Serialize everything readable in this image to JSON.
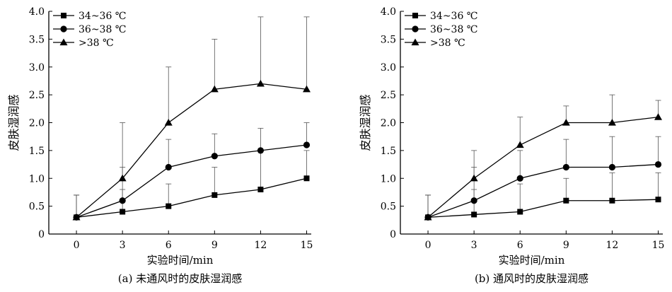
{
  "chart_data": [
    {
      "type": "line",
      "caption": "(a) 未通风时的皮肤湿润感",
      "xlabel": "实验时间/min",
      "ylabel": "皮肤湿润感",
      "x": [
        0,
        3,
        6,
        9,
        12,
        15
      ],
      "xlim": [
        -1.8,
        15.3
      ],
      "ylim": [
        0,
        4.0
      ],
      "yticks": [
        "0",
        "0.5",
        "1.0",
        "1.5",
        "2.0",
        "2.5",
        "3.0",
        "3.5",
        "4.0"
      ],
      "legend_position": "top-left",
      "series": [
        {
          "name": "34~36 ℃",
          "marker": "square",
          "values": [
            0.3,
            0.4,
            0.5,
            0.7,
            0.8,
            1.0
          ],
          "error_upper": [
            0.7,
            0.8,
            0.9,
            1.2,
            1.5,
            1.5
          ]
        },
        {
          "name": "36~38 ℃",
          "marker": "circle",
          "values": [
            0.3,
            0.6,
            1.2,
            1.4,
            1.5,
            1.6
          ],
          "error_upper": [
            0.7,
            1.2,
            1.7,
            1.8,
            1.9,
            2.0
          ]
        },
        {
          "name": ">38 ℃",
          "marker": "triangle",
          "values": [
            0.3,
            1.0,
            2.0,
            2.6,
            2.7,
            2.6
          ],
          "error_upper": [
            0.7,
            2.0,
            3.0,
            3.5,
            3.9,
            3.9
          ]
        }
      ]
    },
    {
      "type": "line",
      "caption": "(b) 通风时的皮肤湿润感",
      "xlabel": "实验时间/min",
      "ylabel": "皮肤湿润感",
      "x": [
        0,
        3,
        6,
        9,
        12,
        15
      ],
      "xlim": [
        -1.8,
        15.3
      ],
      "ylim": [
        0,
        4.0
      ],
      "yticks": [
        "0",
        "0.5",
        "1.0",
        "1.5",
        "2.0",
        "2.5",
        "3.0",
        "3.5",
        "4.0"
      ],
      "legend_position": "top-left",
      "series": [
        {
          "name": "34~36 ℃",
          "marker": "square",
          "values": [
            0.3,
            0.35,
            0.4,
            0.6,
            0.6,
            0.62
          ],
          "error_upper": [
            0.7,
            0.8,
            0.9,
            1.0,
            1.1,
            1.1
          ]
        },
        {
          "name": "36~38 ℃",
          "marker": "circle",
          "values": [
            0.3,
            0.6,
            1.0,
            1.2,
            1.2,
            1.25
          ],
          "error_upper": [
            0.7,
            1.2,
            1.5,
            1.7,
            1.75,
            1.75
          ]
        },
        {
          "name": ">38 ℃",
          "marker": "triangle",
          "values": [
            0.3,
            1.0,
            1.6,
            2.0,
            2.0,
            2.1
          ],
          "error_upper": [
            0.7,
            1.5,
            2.1,
            2.3,
            2.5,
            2.4
          ]
        }
      ]
    }
  ]
}
